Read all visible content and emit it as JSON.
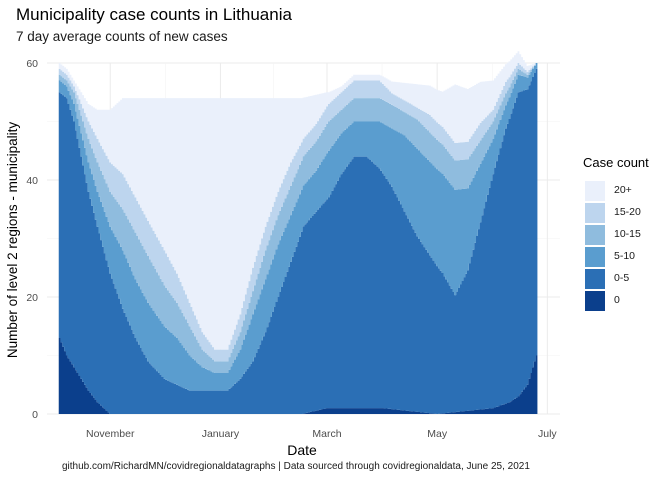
{
  "title": "Municipality case counts in Lithuania",
  "subtitle": "7 day average counts of new cases",
  "caption": "github.com/RichardMN/covidregionaldatagraphs | Data sourced through covidregionaldata, June 25, 2021",
  "legend": {
    "title": "Case count",
    "items": [
      {
        "label": "20+",
        "color": "#eaf0fb"
      },
      {
        "label": "15-20",
        "color": "#bdd5ee"
      },
      {
        "label": "10-15",
        "color": "#8fbcde"
      },
      {
        "label": "5-10",
        "color": "#5a9dcf"
      },
      {
        "label": "0-5",
        "color": "#2b6fb5"
      },
      {
        "label": "0",
        "color": "#0b3f8c"
      }
    ]
  },
  "chart_data": {
    "type": "area",
    "stacked": true,
    "title": "Municipality case counts in Lithuania",
    "subtitle": "7 day average counts of new cases",
    "xlabel": "Date",
    "ylabel": "Number of level 2 regions - municipality",
    "x_range": [
      "2020-10-04",
      "2021-06-25"
    ],
    "x_ticks": [
      {
        "label": "November",
        "date": "2020-11-01"
      },
      {
        "label": "January",
        "date": "2021-01-01"
      },
      {
        "label": "March",
        "date": "2021-03-01"
      },
      {
        "label": "May",
        "date": "2021-05-01"
      },
      {
        "label": "July",
        "date": "2021-07-01"
      }
    ],
    "ylim": [
      0,
      60
    ],
    "y_ticks": [
      0,
      20,
      40,
      60
    ],
    "categories_order": [
      "0",
      "0-5",
      "5-10",
      "10-15",
      "15-20",
      "20+"
    ],
    "series": [
      {
        "name": "0",
        "x": [
          "2020-10-04",
          "2020-10-08",
          "2020-10-12",
          "2020-10-16",
          "2020-10-20",
          "2020-10-25",
          "2020-11-01",
          "2020-11-15",
          "2021-01-01",
          "2021-02-15",
          "2021-03-01",
          "2021-04-01",
          "2021-05-01",
          "2021-06-01",
          "2021-06-10",
          "2021-06-15",
          "2021-06-20",
          "2021-06-25"
        ],
        "values": [
          13,
          10,
          8,
          6,
          4,
          2,
          0,
          0,
          0,
          0,
          1,
          1,
          0,
          1,
          2,
          3,
          5,
          10
        ]
      },
      {
        "name": "0-5",
        "x": [
          "2020-10-04",
          "2020-10-08",
          "2020-10-12",
          "2020-10-16",
          "2020-10-20",
          "2020-10-25",
          "2020-11-01",
          "2020-11-08",
          "2020-11-15",
          "2020-11-22",
          "2020-12-01",
          "2020-12-08",
          "2020-12-15",
          "2020-12-22",
          "2020-12-29",
          "2021-01-05",
          "2021-01-12",
          "2021-01-19",
          "2021-01-26",
          "2021-02-02",
          "2021-02-09",
          "2021-02-16",
          "2021-02-23",
          "2021-03-02",
          "2021-03-09",
          "2021-03-16",
          "2021-03-23",
          "2021-03-30",
          "2021-04-06",
          "2021-04-13",
          "2021-04-20",
          "2021-04-27",
          "2021-05-04",
          "2021-05-11",
          "2021-05-18",
          "2021-05-25",
          "2021-06-01",
          "2021-06-08",
          "2021-06-15",
          "2021-06-25"
        ],
        "values": [
          42,
          44,
          42,
          38,
          34,
          30,
          24,
          18,
          13,
          9,
          6,
          5,
          4,
          4,
          4,
          4,
          6,
          9,
          14,
          20,
          26,
          32,
          34,
          36,
          40,
          43,
          43,
          41,
          38,
          34,
          30,
          27,
          24,
          20,
          24,
          32,
          40,
          47,
          52,
          49
        ]
      },
      {
        "name": "5-10",
        "x": [
          "2020-10-04",
          "2020-10-08",
          "2020-10-12",
          "2020-10-16",
          "2020-10-20",
          "2020-10-25",
          "2020-11-01",
          "2020-11-08",
          "2020-11-15",
          "2020-11-22",
          "2020-12-01",
          "2020-12-08",
          "2020-12-15",
          "2020-12-22",
          "2020-12-29",
          "2021-01-05",
          "2021-01-12",
          "2021-01-19",
          "2021-01-26",
          "2021-02-02",
          "2021-02-09",
          "2021-02-16",
          "2021-02-23",
          "2021-03-02",
          "2021-03-09",
          "2021-03-16",
          "2021-03-23",
          "2021-03-30",
          "2021-04-06",
          "2021-04-13",
          "2021-04-20",
          "2021-04-27",
          "2021-05-04",
          "2021-05-11",
          "2021-05-18",
          "2021-05-25",
          "2021-06-01",
          "2021-06-08",
          "2021-06-15",
          "2021-06-25"
        ],
        "values": [
          2,
          2,
          3,
          4,
          5,
          6,
          8,
          10,
          10,
          10,
          9,
          8,
          6,
          4,
          3,
          3,
          5,
          8,
          9,
          9,
          8,
          7,
          7,
          8,
          7,
          6,
          6,
          8,
          10,
          13,
          15,
          16,
          17,
          18,
          14,
          10,
          6,
          4,
          3,
          1
        ]
      },
      {
        "name": "10-15",
        "x": [
          "2020-10-04",
          "2020-10-08",
          "2020-10-12",
          "2020-10-16",
          "2020-10-20",
          "2020-10-25",
          "2020-11-01",
          "2020-11-08",
          "2020-11-15",
          "2020-11-22",
          "2020-12-01",
          "2020-12-08",
          "2020-12-15",
          "2020-12-22",
          "2020-12-29",
          "2021-01-05",
          "2021-01-12",
          "2021-01-19",
          "2021-01-26",
          "2021-02-02",
          "2021-02-09",
          "2021-02-16",
          "2021-02-23",
          "2021-03-02",
          "2021-03-09",
          "2021-03-16",
          "2021-03-23",
          "2021-03-30",
          "2021-04-06",
          "2021-04-13",
          "2021-04-20",
          "2021-04-27",
          "2021-05-04",
          "2021-05-11",
          "2021-05-18",
          "2021-05-25",
          "2021-06-01",
          "2021-06-08",
          "2021-06-15",
          "2021-06-25"
        ],
        "values": [
          1,
          1,
          2,
          3,
          4,
          5,
          6,
          7,
          8,
          8,
          7,
          6,
          5,
          3,
          2,
          2,
          3,
          4,
          5,
          5,
          5,
          5,
          5,
          5,
          4,
          4,
          4,
          4,
          4,
          4,
          5,
          5,
          5,
          5,
          5,
          4,
          3,
          2,
          1,
          0
        ]
      },
      {
        "name": "15-20",
        "x": [
          "2020-10-04",
          "2020-10-08",
          "2020-10-12",
          "2020-10-16",
          "2020-10-20",
          "2020-10-25",
          "2020-11-01",
          "2020-11-08",
          "2020-11-15",
          "2020-11-22",
          "2020-12-01",
          "2020-12-08",
          "2020-12-15",
          "2020-12-22",
          "2020-12-29",
          "2021-01-05",
          "2021-01-12",
          "2021-01-19",
          "2021-01-26",
          "2021-02-02",
          "2021-02-09",
          "2021-02-16",
          "2021-02-23",
          "2021-03-02",
          "2021-03-09",
          "2021-03-16",
          "2021-03-23",
          "2021-03-30",
          "2021-04-06",
          "2021-04-13",
          "2021-04-20",
          "2021-04-27",
          "2021-05-04",
          "2021-05-11",
          "2021-05-18",
          "2021-05-25",
          "2021-06-01",
          "2021-06-08",
          "2021-06-15",
          "2021-06-25"
        ],
        "values": [
          1,
          1,
          1,
          2,
          3,
          4,
          5,
          6,
          6,
          6,
          6,
          5,
          4,
          3,
          2,
          2,
          3,
          4,
          4,
          4,
          4,
          3,
          3,
          3,
          3,
          3,
          3,
          3,
          2,
          2,
          2,
          3,
          3,
          3,
          3,
          3,
          2,
          2,
          1,
          0
        ]
      },
      {
        "name": "20+",
        "x": [
          "2020-10-04",
          "2020-10-08",
          "2020-10-12",
          "2020-10-16",
          "2020-10-20",
          "2020-10-25",
          "2020-11-01",
          "2020-11-08",
          "2020-11-15",
          "2020-11-22",
          "2020-12-01",
          "2020-12-08",
          "2020-12-15",
          "2020-12-22",
          "2020-12-29",
          "2021-01-05",
          "2021-01-12",
          "2021-01-19",
          "2021-01-26",
          "2021-02-02",
          "2021-02-09",
          "2021-02-16",
          "2021-02-23",
          "2021-03-02",
          "2021-03-09",
          "2021-03-16",
          "2021-03-23",
          "2021-03-30",
          "2021-04-06",
          "2021-04-13",
          "2021-04-20",
          "2021-04-27",
          "2021-05-04",
          "2021-05-11",
          "2021-05-18",
          "2021-05-25",
          "2021-06-01",
          "2021-06-08",
          "2021-06-15",
          "2021-06-25"
        ],
        "values": [
          1,
          1,
          1,
          2,
          3,
          5,
          9,
          13,
          17,
          21,
          26,
          30,
          35,
          40,
          43,
          43,
          37,
          29,
          22,
          16,
          11,
          7,
          5,
          2,
          1,
          1,
          1,
          1,
          2,
          3,
          4,
          5,
          6,
          10,
          9,
          7,
          5,
          3,
          2,
          0
        ]
      }
    ],
    "legend_position": "right",
    "grid": true
  }
}
